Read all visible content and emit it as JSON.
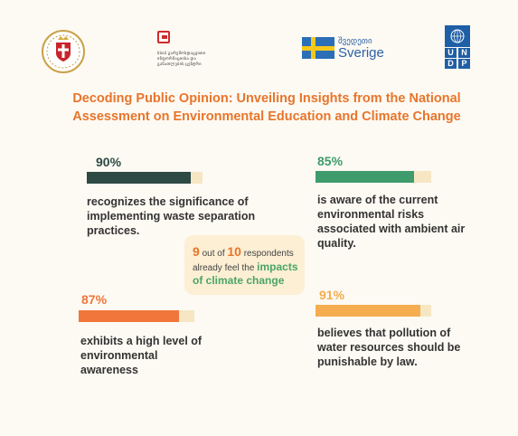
{
  "logos": {
    "agency_lines": [
      "სსიპ გარემოსდაცვითი",
      "ინფორმაციისა და",
      "განათლების ცენტრი"
    ],
    "sweden_ka": "შვედეთი",
    "sweden_name": "Sverige",
    "undp_letters": [
      "U",
      "N",
      "D",
      "P"
    ]
  },
  "title": {
    "line1": "Decoding Public Opinion: Unveiling Insights from the National",
    "line2": "Assessment on Environmental Education and Climate Change"
  },
  "stats": [
    {
      "percent": "90%",
      "value": 0.9,
      "color": "#2e4a45",
      "lines": [
        "recognizes the significance of",
        "implementing waste separation",
        "practices."
      ]
    },
    {
      "percent": "85%",
      "value": 0.85,
      "color": "#3e9b6c",
      "lines": [
        "is aware of the current",
        "environmental risks",
        "associated with ambient air",
        "quality."
      ]
    },
    {
      "percent": "87%",
      "value": 0.87,
      "color": "#f0763b",
      "lines": [
        "exhibits a high level of",
        "environmental",
        "awareness"
      ]
    },
    {
      "percent": "91%",
      "value": 0.91,
      "color": "#f5ad4f",
      "lines": [
        "believes that pollution of",
        "water resources should be",
        "punishable by law."
      ]
    }
  ],
  "callout": {
    "num1": "9",
    "text1": " out of ",
    "num2": "10",
    "text2": " respondents",
    "line2a": "already feel the ",
    "line2b": "impacts",
    "line3": "of climate change"
  },
  "colors": {
    "title": "#e8752b",
    "track": "#f6e6c4",
    "callout_bg": "#fcefd4",
    "highlight_green": "#4aa569"
  }
}
